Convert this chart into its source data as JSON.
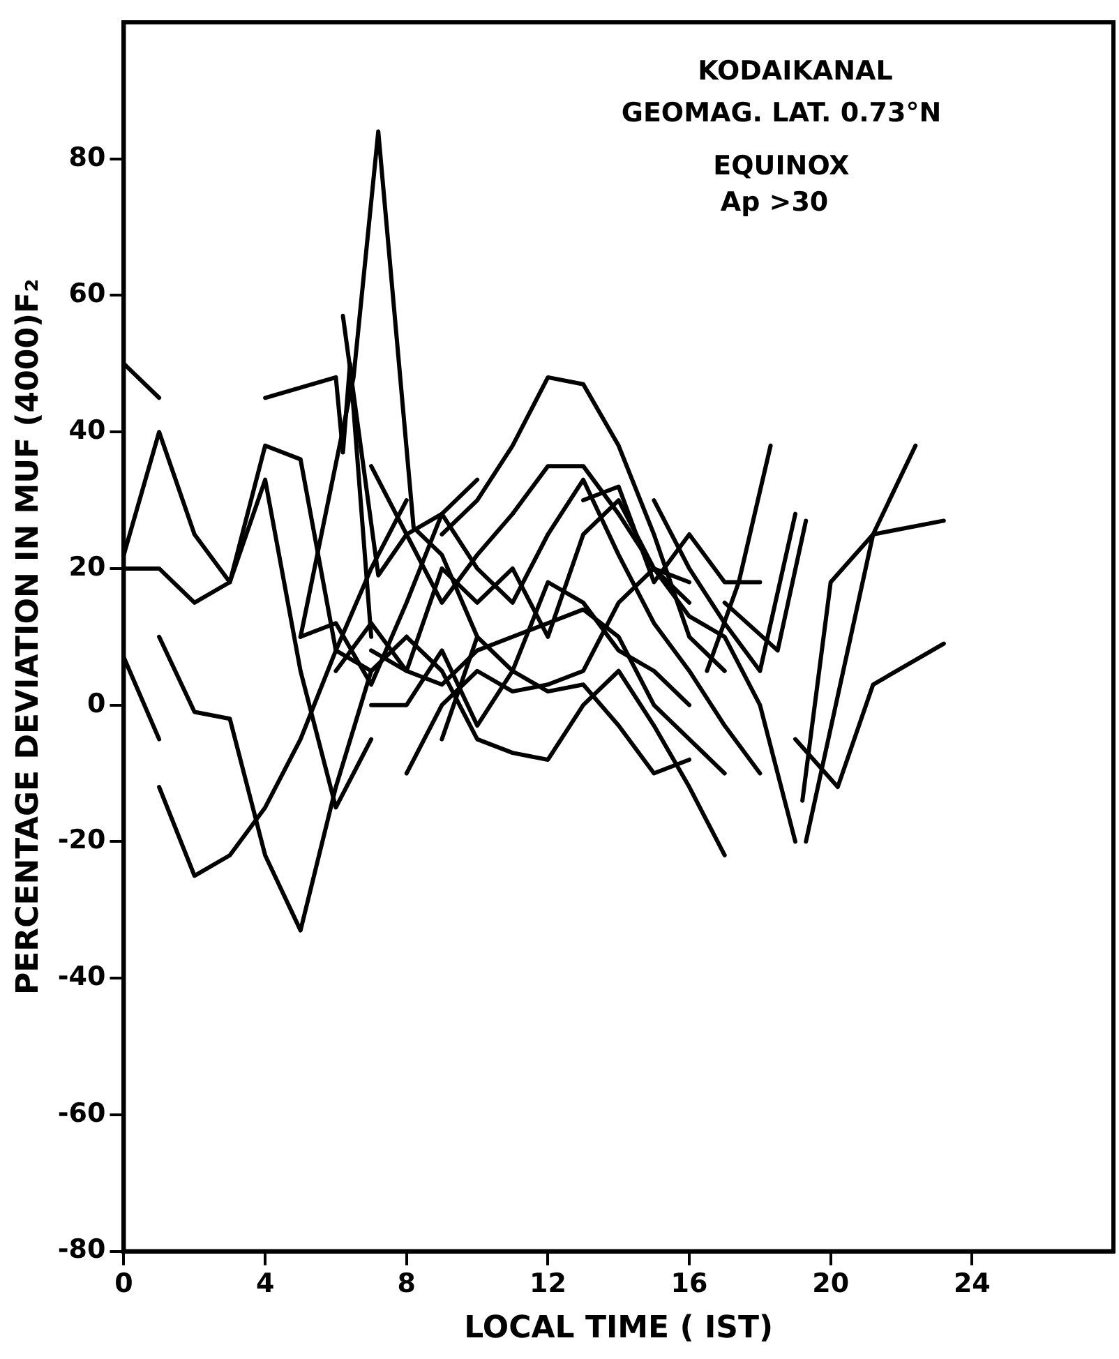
{
  "chart_data": {
    "type": "line",
    "xlabel": "LOCAL TIME ( IST)",
    "ylabel": "PERCENTAGE DEVIATION IN MUF (4000)F₂",
    "annotations": [
      "KODAIKANAL",
      "GEOMAG. LAT. 0.73°N",
      "EQUINOX",
      "Ap >30"
    ],
    "xlim": [
      0,
      28
    ],
    "xticks": [
      0,
      4,
      8,
      12,
      16,
      20,
      24
    ],
    "ylim": [
      -80,
      100
    ],
    "yticks": [
      -80,
      -60,
      -40,
      -20,
      0,
      20,
      40,
      60,
      80
    ],
    "grid": false,
    "legend": false,
    "marker": "none",
    "line_style": "solid",
    "series": [
      {
        "color": "#000000",
        "x": [
          0,
          1
        ],
        "values": [
          50,
          45
        ]
      },
      {
        "color": "#000000",
        "x": [
          0,
          1,
          2,
          3,
          4,
          5,
          6,
          7,
          8
        ],
        "values": [
          22,
          40,
          25,
          18,
          38,
          36,
          8,
          5,
          10
        ]
      },
      {
        "color": "#000000",
        "x": [
          0,
          1,
          2,
          3,
          4,
          5,
          6,
          7
        ],
        "values": [
          20,
          20,
          15,
          18,
          33,
          5,
          -15,
          -5
        ]
      },
      {
        "color": "#000000",
        "x": [
          0,
          1
        ],
        "values": [
          7,
          -5
        ]
      },
      {
        "color": "#000000",
        "x": [
          1,
          2,
          3,
          4,
          5,
          6,
          7
        ],
        "values": [
          10,
          -1,
          -2,
          -22,
          -33,
          -12,
          5
        ]
      },
      {
        "color": "#000000",
        "x": [
          1,
          2,
          3,
          4,
          5,
          6,
          7,
          8
        ],
        "values": [
          -12,
          -25,
          -22,
          -15,
          -5,
          8,
          20,
          30
        ]
      },
      {
        "color": "#000000",
        "x": [
          4,
          6,
          6.2,
          6.4,
          7
        ],
        "values": [
          45,
          48,
          37,
          50,
          10
        ]
      },
      {
        "color": "#000000",
        "x": [
          6.2,
          7.2,
          8,
          9,
          10
        ],
        "values": [
          57,
          19,
          25,
          28,
          33
        ]
      },
      {
        "color": "#000000",
        "x": [
          5,
          6.5,
          7.2,
          8.2,
          9,
          10
        ],
        "values": [
          10,
          48,
          84,
          26,
          22,
          10
        ]
      },
      {
        "color": "#000000",
        "x": [
          9,
          10,
          11,
          12,
          13,
          14,
          15,
          16,
          17
        ],
        "values": [
          25,
          30,
          38,
          48,
          47,
          38,
          25,
          10,
          5
        ]
      },
      {
        "color": "#000000",
        "x": [
          7,
          8,
          9,
          10,
          11,
          12,
          13,
          14,
          15,
          16
        ],
        "values": [
          35,
          25,
          15,
          22,
          28,
          35,
          35,
          28,
          20,
          18
        ]
      },
      {
        "color": "#000000",
        "x": [
          8,
          9,
          10,
          11,
          12,
          13,
          14,
          15,
          16,
          17
        ],
        "values": [
          10,
          5,
          -5,
          -7,
          -8,
          0,
          5,
          -3,
          -12,
          -22
        ]
      },
      {
        "color": "#000000",
        "x": [
          7,
          8,
          9,
          10,
          11,
          12,
          13,
          14,
          15,
          16,
          17
        ],
        "values": [
          8,
          5,
          3,
          8,
          10,
          12,
          14,
          10,
          0,
          -5,
          -10
        ]
      },
      {
        "color": "#000000",
        "x": [
          8,
          9,
          10,
          11,
          12,
          13,
          14,
          15,
          16,
          17,
          18,
          19
        ],
        "values": [
          -10,
          0,
          5,
          2,
          3,
          5,
          15,
          20,
          13,
          10,
          0,
          -20
        ]
      },
      {
        "color": "#000000",
        "x": [
          13,
          14,
          15,
          16,
          17,
          18
        ],
        "values": [
          30,
          32,
          18,
          25,
          18,
          18
        ]
      },
      {
        "color": "#000000",
        "x": [
          15,
          16,
          17,
          18,
          19
        ],
        "values": [
          30,
          20,
          12,
          5,
          28
        ]
      },
      {
        "color": "#000000",
        "x": [
          19.2,
          20,
          21.2,
          23.2
        ],
        "values": [
          -14,
          18,
          25,
          27
        ]
      },
      {
        "color": "#000000",
        "x": [
          16.5,
          17.4,
          18.3
        ],
        "values": [
          5,
          18,
          38
        ]
      },
      {
        "color": "#000000",
        "x": [
          17,
          18.5,
          19.3
        ],
        "values": [
          15,
          8,
          27
        ]
      },
      {
        "color": "#000000",
        "x": [
          19,
          20.2,
          21.2,
          23.2
        ],
        "values": [
          -5,
          -12,
          3,
          9
        ]
      },
      {
        "color": "#000000",
        "x": [
          19.3,
          21.2,
          22.4
        ],
        "values": [
          -20,
          25,
          38
        ]
      },
      {
        "color": "#000000",
        "x": [
          6,
          7,
          8,
          9,
          10,
          11,
          12,
          13,
          14,
          15,
          16
        ],
        "values": [
          5,
          12,
          5,
          20,
          15,
          20,
          10,
          25,
          30,
          20,
          15
        ]
      },
      {
        "color": "#000000",
        "x": [
          7,
          8,
          9,
          10,
          11,
          12,
          13,
          14,
          15,
          16
        ],
        "values": [
          0,
          0,
          8,
          -3,
          5,
          2,
          3,
          -3,
          -10,
          -8
        ]
      },
      {
        "color": "#000000",
        "x": [
          5,
          6,
          7,
          8,
          9,
          10,
          11,
          12,
          13,
          14,
          15,
          16,
          17,
          18
        ],
        "values": [
          10,
          12,
          3,
          15,
          28,
          20,
          15,
          25,
          33,
          22,
          12,
          5,
          -3,
          -10
        ]
      },
      {
        "color": "#000000",
        "x": [
          9,
          10,
          11,
          12,
          13,
          14,
          15,
          16
        ],
        "values": [
          -5,
          10,
          5,
          18,
          15,
          8,
          5,
          0
        ]
      }
    ]
  }
}
